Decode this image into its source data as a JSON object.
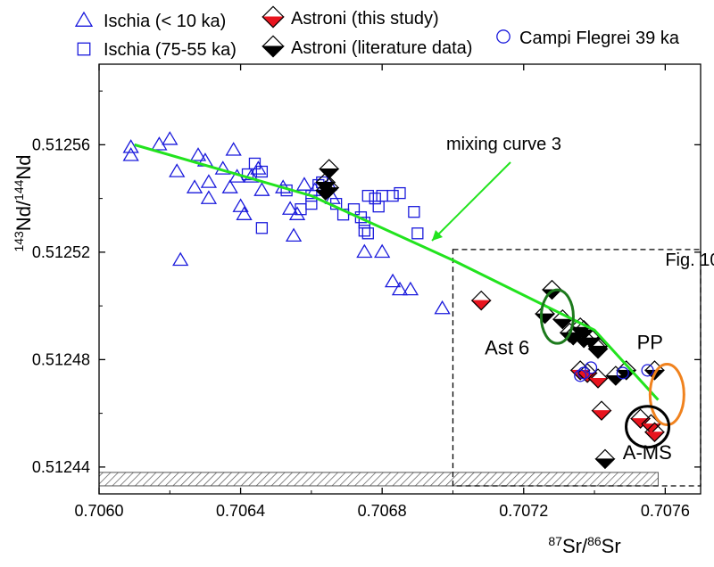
{
  "colors": {
    "ischia": "#1a1adc",
    "astroni_this_study": "#e8141e",
    "astroni_literature": "#000000",
    "campi_flegrei": "#1a1adc",
    "mixing_curve": "#22e31e",
    "ast6_ellipse": "#1c7a1c",
    "pp_ellipse": "#f0821e",
    "ams_ellipse": "#000000",
    "hatch": "#555555"
  },
  "chart_data": {
    "type": "scatter",
    "xlabel": {
      "pre": "87",
      "mid": "Sr/",
      "sup": "86",
      "post": "Sr"
    },
    "ylabel": {
      "pre": "143",
      "mid": "Nd/",
      "sup": "144",
      "post": "Nd"
    },
    "xlim": [
      0.706,
      0.7077
    ],
    "ylim": [
      0.51243,
      0.51259
    ],
    "xticks": [
      0.706,
      0.7064,
      0.7068,
      0.7072,
      0.7076
    ],
    "xtick_labels": [
      "0.7060",
      "0.7064",
      "0.7068",
      "0.7072",
      "0.7076"
    ],
    "yticks": [
      0.51244,
      0.51248,
      0.51252,
      0.51256
    ],
    "ytick_labels": [
      "0.51244",
      "0.51248",
      "0.51252",
      "0.51256"
    ],
    "legend": [
      {
        "label": "Ischia (< 10 ka)",
        "marker": "triangle",
        "color": "#1a1adc"
      },
      {
        "label": "Ischia (75-55 ka)",
        "marker": "square",
        "color": "#1a1adc"
      },
      {
        "label": "Astroni (this study)",
        "marker": "half-diamond",
        "color": "#e8141e"
      },
      {
        "label": "Astroni (literature data)",
        "marker": "half-diamond",
        "color": "#000000"
      },
      {
        "label": "Campi Flegrei 39 ka",
        "marker": "circle",
        "color": "#1a1adc"
      }
    ],
    "series": [
      {
        "name": "Ischia (< 10 ka)",
        "marker": "triangle",
        "points": [
          [
            0.70609,
            0.512559
          ],
          [
            0.70609,
            0.512556
          ],
          [
            0.70617,
            0.51256
          ],
          [
            0.7062,
            0.512562
          ],
          [
            0.70622,
            0.51255
          ],
          [
            0.70623,
            0.512517
          ],
          [
            0.70627,
            0.512544
          ],
          [
            0.70628,
            0.512556
          ],
          [
            0.7063,
            0.512554
          ],
          [
            0.70631,
            0.512546
          ],
          [
            0.70631,
            0.51254
          ],
          [
            0.70635,
            0.512551
          ],
          [
            0.70637,
            0.512544
          ],
          [
            0.70638,
            0.512558
          ],
          [
            0.70639,
            0.512548
          ],
          [
            0.7064,
            0.512537
          ],
          [
            0.70641,
            0.512534
          ],
          [
            0.70643,
            0.512548
          ],
          [
            0.70645,
            0.512551
          ],
          [
            0.70646,
            0.512543
          ],
          [
            0.70652,
            0.512544
          ],
          [
            0.70654,
            0.512536
          ],
          [
            0.70655,
            0.512526
          ],
          [
            0.70656,
            0.512534
          ],
          [
            0.70658,
            0.512545
          ],
          [
            0.70661,
            0.512543
          ],
          [
            0.70665,
            0.512545
          ],
          [
            0.70666,
            0.51254
          ],
          [
            0.70675,
            0.51252
          ],
          [
            0.7068,
            0.51252
          ],
          [
            0.70683,
            0.512509
          ],
          [
            0.70685,
            0.512506
          ],
          [
            0.70688,
            0.512506
          ],
          [
            0.70697,
            0.512499
          ]
        ]
      },
      {
        "name": "Ischia (75-55 ka)",
        "marker": "square",
        "points": [
          [
            0.70642,
            0.512549
          ],
          [
            0.70644,
            0.512553
          ],
          [
            0.70646,
            0.51255
          ],
          [
            0.70646,
            0.512529
          ],
          [
            0.70653,
            0.512543
          ],
          [
            0.70657,
            0.512536
          ],
          [
            0.7066,
            0.512538
          ],
          [
            0.7066,
            0.512541
          ],
          [
            0.70662,
            0.512545
          ],
          [
            0.70663,
            0.512546
          ],
          [
            0.70667,
            0.512538
          ],
          [
            0.70669,
            0.512534
          ],
          [
            0.70672,
            0.512536
          ],
          [
            0.70674,
            0.512533
          ],
          [
            0.70675,
            0.512531
          ],
          [
            0.70675,
            0.512528
          ],
          [
            0.70676,
            0.512527
          ],
          [
            0.70676,
            0.512541
          ],
          [
            0.70678,
            0.51254
          ],
          [
            0.70679,
            0.512537
          ],
          [
            0.7068,
            0.512541
          ],
          [
            0.70683,
            0.512541
          ],
          [
            0.70685,
            0.512542
          ],
          [
            0.70689,
            0.512535
          ],
          [
            0.7069,
            0.512527
          ]
        ]
      },
      {
        "name": "Astroni (this study)",
        "marker": "half-diamond",
        "points": [
          [
            0.70708,
            0.512502
          ],
          [
            0.70736,
            0.512476
          ],
          [
            0.70738,
            0.512475
          ],
          [
            0.70741,
            0.512473
          ],
          [
            0.70742,
            0.512461
          ],
          [
            0.70753,
            0.512458
          ],
          [
            0.70756,
            0.512456
          ],
          [
            0.70757,
            0.512453
          ]
        ]
      },
      {
        "name": "Astroni (literature data)",
        "marker": "half-diamond",
        "points": [
          [
            0.70665,
            0.512551
          ],
          [
            0.70664,
            0.512546
          ],
          [
            0.70665,
            0.512544
          ],
          [
            0.70664,
            0.512543
          ],
          [
            0.70728,
            0.512506
          ],
          [
            0.70726,
            0.512497
          ],
          [
            0.70731,
            0.512495
          ],
          [
            0.70733,
            0.51249
          ],
          [
            0.70734,
            0.512489
          ],
          [
            0.70736,
            0.512492
          ],
          [
            0.70737,
            0.512491
          ],
          [
            0.70737,
            0.512488
          ],
          [
            0.70739,
            0.512488
          ],
          [
            0.70741,
            0.512485
          ],
          [
            0.70741,
            0.512484
          ],
          [
            0.70746,
            0.512474
          ],
          [
            0.70749,
            0.512476
          ],
          [
            0.70757,
            0.512476
          ],
          [
            0.70743,
            0.512443
          ]
        ]
      },
      {
        "name": "Campi Flegrei 39 ka",
        "marker": "circle",
        "points": [
          [
            0.70736,
            0.512474
          ],
          [
            0.70737,
            0.512475
          ],
          [
            0.70739,
            0.512477
          ],
          [
            0.70748,
            0.512475
          ],
          [
            0.70755,
            0.512476
          ]
        ]
      }
    ],
    "mixing_curve": {
      "label": "mixing curve 3",
      "points": [
        [
          0.7061,
          0.51256
        ],
        [
          0.7066,
          0.512541
        ],
        [
          0.707,
          0.512517
        ],
        [
          0.7074,
          0.512491
        ],
        [
          0.70758,
          0.512465
        ]
      ]
    },
    "annotations": [
      {
        "text": "Ast 6",
        "x": 0.70709,
        "y": 0.512482
      },
      {
        "text": "PP",
        "x": 0.70752,
        "y": 0.512484
      },
      {
        "text": "A-MS",
        "x": 0.70748,
        "y": 0.512443
      },
      {
        "text": "Fig. 10",
        "x": 0.7076,
        "y": 0.512515
      }
    ],
    "ellipses": [
      {
        "label": "Ast 6",
        "cx": 0.707295,
        "cy": 0.512496,
        "color": "#1c7a1c"
      },
      {
        "label": "PP",
        "cx": 0.707605,
        "cy": 0.512467,
        "color": "#f0821e"
      },
      {
        "label": "A-MS",
        "cx": 0.70755,
        "cy": 0.512455,
        "color": "#000000"
      }
    ],
    "dashed_box": {
      "x0": 0.707,
      "x1": 0.7077,
      "y0": 0.512433,
      "y1": 0.512521
    },
    "hatched_band": {
      "x0": 0.706,
      "x1": 0.70758,
      "y0": 0.512433,
      "y1": 0.512438
    },
    "grid": false
  }
}
